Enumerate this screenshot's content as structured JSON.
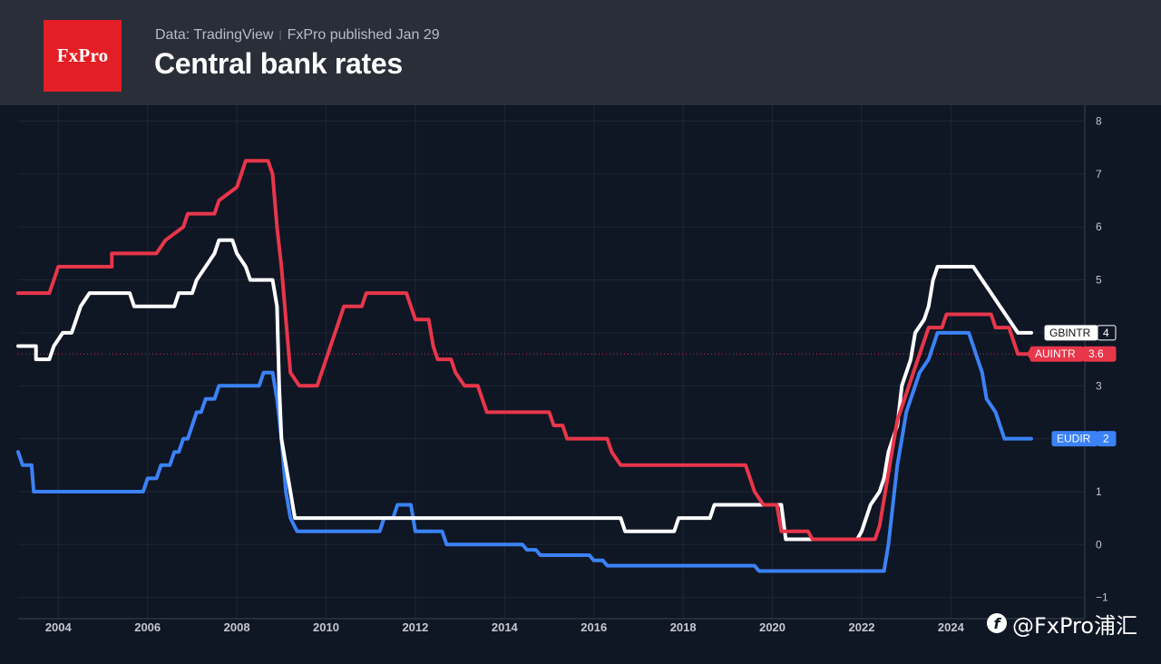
{
  "header": {
    "logo_text": "FxPro",
    "source": "Data: TradingView",
    "published": "FxPro published Jan 29",
    "title": "Central bank rates"
  },
  "watermark": {
    "text": "@FxPro浦汇",
    "icon": "weibo-logo-icon"
  },
  "colors": {
    "background": "#0f1624",
    "header": "#2a2e39",
    "grid": "#1f2635",
    "axis_text": "#c4c8d0",
    "brand_red": "#e31e24"
  },
  "chart_data": {
    "type": "line",
    "title": "Central bank rates",
    "xlim": [
      2003.1,
      2027.0
    ],
    "ylim": [
      -1.4,
      8.3
    ],
    "x_ticks": [
      2004,
      2006,
      2008,
      2010,
      2012,
      2014,
      2016,
      2018,
      2020,
      2022,
      2024
    ],
    "y_ticks": [
      8,
      7,
      6,
      5,
      4,
      3,
      2,
      1,
      0,
      -1
    ],
    "y_tick_labels": [
      "8",
      "7",
      "6",
      "5",
      "4",
      "3",
      "2",
      "1",
      "0",
      "−1"
    ],
    "grid": true,
    "reference_line": {
      "y": 3.6,
      "color": "#e8364a",
      "style": "dotted"
    },
    "series": [
      {
        "name": "AUINTR",
        "color": "#e8364a",
        "last_value": "3.6",
        "points": [
          [
            2003.1,
            4.75
          ],
          [
            2003.8,
            4.75
          ],
          [
            2003.9,
            5.0
          ],
          [
            2004.0,
            5.25
          ],
          [
            2005.2,
            5.25
          ],
          [
            2005.2,
            5.5
          ],
          [
            2006.2,
            5.5
          ],
          [
            2006.4,
            5.75
          ],
          [
            2006.8,
            6.0
          ],
          [
            2006.9,
            6.25
          ],
          [
            2007.5,
            6.25
          ],
          [
            2007.6,
            6.5
          ],
          [
            2008.0,
            6.75
          ],
          [
            2008.1,
            7.0
          ],
          [
            2008.2,
            7.25
          ],
          [
            2008.7,
            7.25
          ],
          [
            2008.8,
            7.0
          ],
          [
            2008.9,
            6.0
          ],
          [
            2009.0,
            5.25
          ],
          [
            2009.1,
            4.25
          ],
          [
            2009.2,
            3.25
          ],
          [
            2009.4,
            3.0
          ],
          [
            2009.8,
            3.0
          ],
          [
            2009.9,
            3.25
          ],
          [
            2010.0,
            3.5
          ],
          [
            2010.1,
            3.75
          ],
          [
            2010.2,
            4.0
          ],
          [
            2010.3,
            4.25
          ],
          [
            2010.4,
            4.5
          ],
          [
            2010.8,
            4.5
          ],
          [
            2010.9,
            4.75
          ],
          [
            2011.8,
            4.75
          ],
          [
            2011.9,
            4.5
          ],
          [
            2012.0,
            4.25
          ],
          [
            2012.3,
            4.25
          ],
          [
            2012.4,
            3.75
          ],
          [
            2012.5,
            3.5
          ],
          [
            2012.8,
            3.5
          ],
          [
            2012.9,
            3.25
          ],
          [
            2013.1,
            3.0
          ],
          [
            2013.4,
            3.0
          ],
          [
            2013.5,
            2.75
          ],
          [
            2013.6,
            2.5
          ],
          [
            2015.0,
            2.5
          ],
          [
            2015.1,
            2.25
          ],
          [
            2015.3,
            2.25
          ],
          [
            2015.4,
            2.0
          ],
          [
            2016.3,
            2.0
          ],
          [
            2016.4,
            1.75
          ],
          [
            2016.6,
            1.5
          ],
          [
            2019.4,
            1.5
          ],
          [
            2019.5,
            1.25
          ],
          [
            2019.6,
            1.0
          ],
          [
            2019.8,
            0.75
          ],
          [
            2020.1,
            0.75
          ],
          [
            2020.2,
            0.25
          ],
          [
            2020.8,
            0.25
          ],
          [
            2020.9,
            0.1
          ],
          [
            2022.3,
            0.1
          ],
          [
            2022.4,
            0.35
          ],
          [
            2022.5,
            0.85
          ],
          [
            2022.6,
            1.35
          ],
          [
            2022.7,
            1.85
          ],
          [
            2022.8,
            2.35
          ],
          [
            2022.9,
            2.6
          ],
          [
            2023.0,
            2.85
          ],
          [
            2023.1,
            3.1
          ],
          [
            2023.2,
            3.35
          ],
          [
            2023.3,
            3.6
          ],
          [
            2023.4,
            3.85
          ],
          [
            2023.5,
            4.1
          ],
          [
            2023.8,
            4.1
          ],
          [
            2023.9,
            4.35
          ],
          [
            2024.9,
            4.35
          ],
          [
            2025.0,
            4.1
          ],
          [
            2025.3,
            4.1
          ],
          [
            2025.4,
            3.85
          ],
          [
            2025.5,
            3.6
          ],
          [
            2025.8,
            3.6
          ]
        ]
      },
      {
        "name": "GBINTR",
        "color": "#ffffff",
        "last_value": "4",
        "points": [
          [
            2003.1,
            3.75
          ],
          [
            2003.5,
            3.75
          ],
          [
            2003.5,
            3.5
          ],
          [
            2003.8,
            3.5
          ],
          [
            2003.9,
            3.75
          ],
          [
            2004.1,
            4.0
          ],
          [
            2004.3,
            4.0
          ],
          [
            2004.4,
            4.25
          ],
          [
            2004.5,
            4.5
          ],
          [
            2004.7,
            4.75
          ],
          [
            2005.6,
            4.75
          ],
          [
            2005.7,
            4.5
          ],
          [
            2006.6,
            4.5
          ],
          [
            2006.7,
            4.75
          ],
          [
            2007.0,
            4.75
          ],
          [
            2007.1,
            5.0
          ],
          [
            2007.3,
            5.25
          ],
          [
            2007.5,
            5.5
          ],
          [
            2007.6,
            5.75
          ],
          [
            2007.9,
            5.75
          ],
          [
            2008.0,
            5.5
          ],
          [
            2008.2,
            5.25
          ],
          [
            2008.3,
            5.0
          ],
          [
            2008.8,
            5.0
          ],
          [
            2008.9,
            4.5
          ],
          [
            2008.95,
            3.0
          ],
          [
            2009.0,
            2.0
          ],
          [
            2009.1,
            1.5
          ],
          [
            2009.2,
            1.0
          ],
          [
            2009.3,
            0.5
          ],
          [
            2016.6,
            0.5
          ],
          [
            2016.7,
            0.25
          ],
          [
            2017.8,
            0.25
          ],
          [
            2017.9,
            0.5
          ],
          [
            2018.6,
            0.5
          ],
          [
            2018.7,
            0.75
          ],
          [
            2020.2,
            0.75
          ],
          [
            2020.3,
            0.1
          ],
          [
            2021.9,
            0.1
          ],
          [
            2022.0,
            0.25
          ],
          [
            2022.1,
            0.5
          ],
          [
            2022.2,
            0.75
          ],
          [
            2022.4,
            1.0
          ],
          [
            2022.5,
            1.25
          ],
          [
            2022.6,
            1.75
          ],
          [
            2022.8,
            2.25
          ],
          [
            2022.9,
            3.0
          ],
          [
            2023.1,
            3.5
          ],
          [
            2023.2,
            4.0
          ],
          [
            2023.4,
            4.25
          ],
          [
            2023.5,
            4.5
          ],
          [
            2023.6,
            5.0
          ],
          [
            2023.7,
            5.25
          ],
          [
            2024.5,
            5.25
          ],
          [
            2024.7,
            5.0
          ],
          [
            2024.9,
            4.75
          ],
          [
            2025.1,
            4.5
          ],
          [
            2025.3,
            4.25
          ],
          [
            2025.5,
            4.0
          ],
          [
            2025.8,
            4.0
          ]
        ]
      },
      {
        "name": "EUDIR",
        "color": "#3b82f6",
        "last_value": "2",
        "points": [
          [
            2003.1,
            1.75
          ],
          [
            2003.2,
            1.5
          ],
          [
            2003.4,
            1.5
          ],
          [
            2003.45,
            1.0
          ],
          [
            2005.9,
            1.0
          ],
          [
            2006.0,
            1.25
          ],
          [
            2006.2,
            1.25
          ],
          [
            2006.3,
            1.5
          ],
          [
            2006.5,
            1.5
          ],
          [
            2006.6,
            1.75
          ],
          [
            2006.7,
            1.75
          ],
          [
            2006.8,
            2.0
          ],
          [
            2006.9,
            2.0
          ],
          [
            2007.0,
            2.25
          ],
          [
            2007.1,
            2.5
          ],
          [
            2007.2,
            2.5
          ],
          [
            2007.3,
            2.75
          ],
          [
            2007.5,
            2.75
          ],
          [
            2007.6,
            3.0
          ],
          [
            2008.5,
            3.0
          ],
          [
            2008.6,
            3.25
          ],
          [
            2008.8,
            3.25
          ],
          [
            2008.9,
            2.75
          ],
          [
            2009.0,
            2.0
          ],
          [
            2009.1,
            1.0
          ],
          [
            2009.2,
            0.5
          ],
          [
            2009.35,
            0.25
          ],
          [
            2011.2,
            0.25
          ],
          [
            2011.3,
            0.5
          ],
          [
            2011.5,
            0.5
          ],
          [
            2011.6,
            0.75
          ],
          [
            2011.9,
            0.75
          ],
          [
            2012.0,
            0.25
          ],
          [
            2012.6,
            0.25
          ],
          [
            2012.7,
            0.0
          ],
          [
            2014.4,
            0.0
          ],
          [
            2014.5,
            -0.1
          ],
          [
            2014.7,
            -0.1
          ],
          [
            2014.8,
            -0.2
          ],
          [
            2015.9,
            -0.2
          ],
          [
            2016.0,
            -0.3
          ],
          [
            2016.2,
            -0.3
          ],
          [
            2016.3,
            -0.4
          ],
          [
            2019.6,
            -0.4
          ],
          [
            2019.7,
            -0.5
          ],
          [
            2022.5,
            -0.5
          ],
          [
            2022.6,
            0.0
          ],
          [
            2022.7,
            0.75
          ],
          [
            2022.8,
            1.5
          ],
          [
            2022.9,
            2.0
          ],
          [
            2023.0,
            2.5
          ],
          [
            2023.2,
            3.0
          ],
          [
            2023.3,
            3.25
          ],
          [
            2023.5,
            3.5
          ],
          [
            2023.6,
            3.75
          ],
          [
            2023.7,
            4.0
          ],
          [
            2024.4,
            4.0
          ],
          [
            2024.5,
            3.75
          ],
          [
            2024.6,
            3.5
          ],
          [
            2024.7,
            3.25
          ],
          [
            2024.8,
            2.75
          ],
          [
            2025.0,
            2.5
          ],
          [
            2025.1,
            2.25
          ],
          [
            2025.2,
            2.0
          ],
          [
            2025.8,
            2.0
          ]
        ]
      }
    ]
  }
}
